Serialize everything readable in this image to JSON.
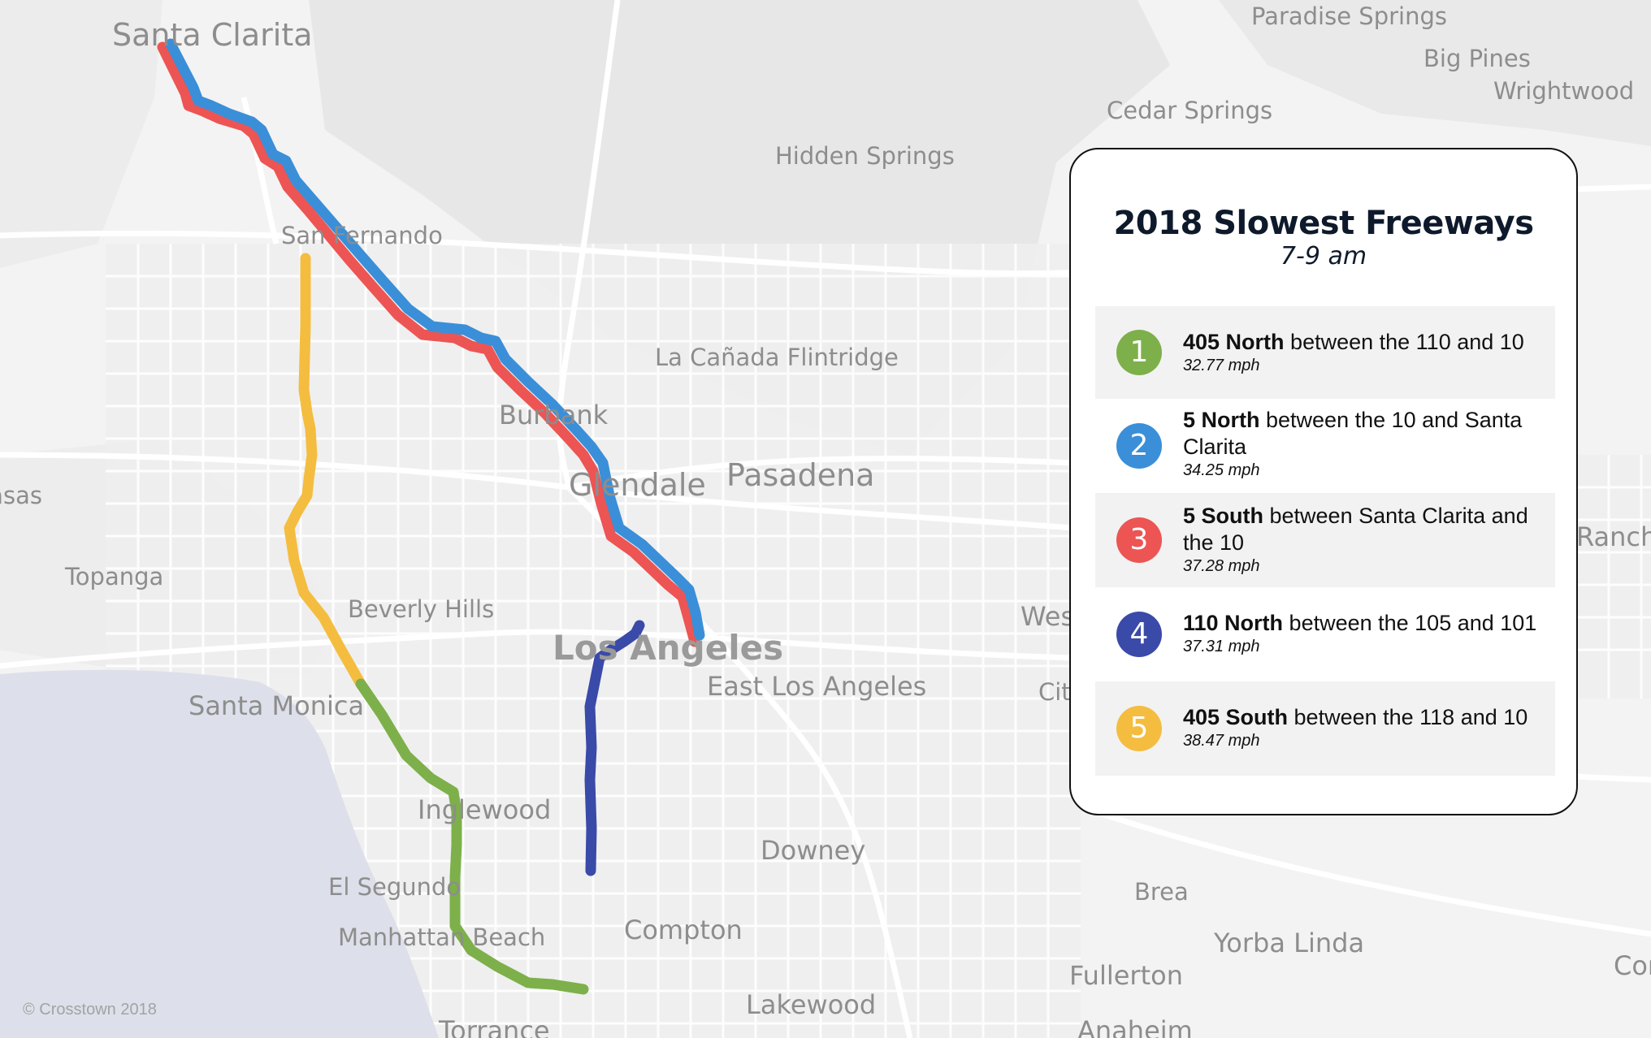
{
  "legend": {
    "title": "2018 Slowest Freeways",
    "subtitle": "7-9 am",
    "items": [
      {
        "rank": "1",
        "route": "405 North",
        "description": " between the 110 and 10",
        "speed": "32.77 mph",
        "color": "#7db04a"
      },
      {
        "rank": "2",
        "route": "5 North",
        "description": " between the 10 and Santa Clarita",
        "speed": "34.25 mph",
        "color": "#3a8fd8"
      },
      {
        "rank": "3",
        "route": "5 South",
        "description": " between Santa Clarita and the 10",
        "speed": "37.28 mph",
        "color": "#ec5553"
      },
      {
        "rank": "4",
        "route": "110 North",
        "description": " between the 105 and 101",
        "speed": "37.31 mph",
        "color": "#3a4aa8"
      },
      {
        "rank": "5",
        "route": "405 South",
        "description": " between the 118 and 10",
        "speed": "38.47 mph",
        "color": "#f4bd3f"
      }
    ]
  },
  "map": {
    "places": {
      "santa_clarita": "Santa Clarita",
      "paradise_springs": "Paradise Springs",
      "big_pines": "Big Pines",
      "wrightwood": "Wrightwood",
      "cedar_springs": "Cedar Springs",
      "hidden_springs": "Hidden Springs",
      "san_fernando": "San Fernando",
      "la_canada_flintridge": "La Cañada Flintridge",
      "burbank": "Burbank",
      "glendale": "Glendale",
      "pasadena": "Pasadena",
      "calabasas": "Calabasas",
      "topanga": "Topanga",
      "beverly_hills": "Beverly Hills",
      "santa_monica": "Santa Monica",
      "los_angeles": "Los Angeles",
      "east_los_angeles": "East Los Angeles",
      "west_covina": "West Covina",
      "city_of_industry": "City of Industry",
      "rancho_cucamonga": "Rancho Cucamonga",
      "inglewood": "Inglewood",
      "el_segundo": "El Segundo",
      "manhattan_beach": "Manhattan Beach",
      "downey": "Downey",
      "compton": "Compton",
      "brea": "Brea",
      "yorba_linda": "Yorba Linda",
      "fullerton": "Fullerton",
      "lakewood": "Lakewood",
      "torrance": "Torrance",
      "anaheim": "Anaheim",
      "corona": "Corona"
    },
    "credit": "© Crosstown 2018"
  }
}
